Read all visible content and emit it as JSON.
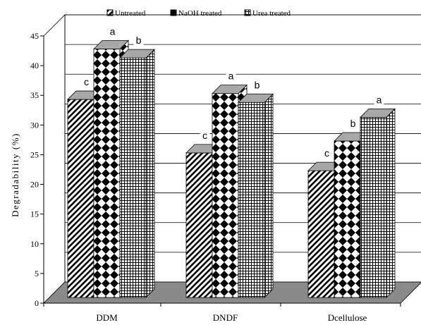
{
  "chart_data": {
    "type": "bar",
    "title": "",
    "xlabel": "",
    "ylabel": "Degradability (%)",
    "ylim": [
      0,
      45
    ],
    "yticks": [
      0,
      5,
      10,
      15,
      20,
      25,
      30,
      35,
      40,
      45
    ],
    "grid": true,
    "legend_position": "top",
    "categories": [
      "DDM",
      "DNDF",
      "Dcellulose"
    ],
    "series": [
      {
        "name": "Untreated",
        "pattern": "diagonal",
        "values": [
          33,
          24,
          21
        ],
        "labels": [
          "c",
          "c",
          "c"
        ]
      },
      {
        "name": "NaOH treated",
        "pattern": "diamond",
        "values": [
          41.5,
          34,
          26
        ],
        "labels": [
          "a",
          "a",
          "b"
        ]
      },
      {
        "name": "Urea treated",
        "pattern": "grid",
        "values": [
          40,
          32.5,
          30
        ],
        "labels": [
          "b",
          "b",
          "a"
        ]
      }
    ],
    "colors": {
      "floor": "#8a8a8a",
      "bar_top": "#a8a8a8",
      "stroke": "#000000",
      "grid": "#000000"
    }
  }
}
